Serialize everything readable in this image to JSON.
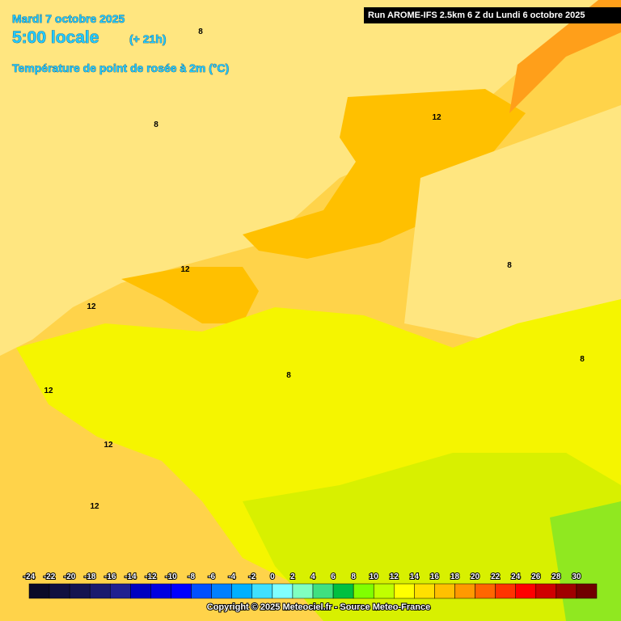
{
  "header": {
    "date": "Mardi 7 octobre 2025",
    "time": "5:00 locale",
    "lead": "(+ 21h)",
    "parameter": "Température de point de rosée à 2m (°C)",
    "run": "Run AROME-IFS 2.5km 6 Z du Lundi 6 octobre 2025"
  },
  "contour_labels": [
    "8",
    "12",
    "8",
    "12",
    "12",
    "8",
    "8",
    "8",
    "12",
    "12",
    "12"
  ],
  "legend": {
    "labels": [
      "-24",
      "-22",
      "-20",
      "-18",
      "-16",
      "-14",
      "-12",
      "-10",
      "-8",
      "-6",
      "-4",
      "-2",
      "0",
      "2",
      "4",
      "6",
      "8",
      "10",
      "12",
      "14",
      "16",
      "18",
      "20",
      "22",
      "24",
      "26",
      "28",
      "30"
    ],
    "colors": [
      "#0a0a28",
      "#101040",
      "#141450",
      "#1a1a6e",
      "#202090",
      "#0000c0",
      "#0000e0",
      "#0000ff",
      "#0050ff",
      "#0080ff",
      "#00b0ff",
      "#40e0ff",
      "#80ffff",
      "#80ffc0",
      "#40e080",
      "#00c040",
      "#80ff00",
      "#c0ff00",
      "#ffff00",
      "#ffe000",
      "#ffc000",
      "#ff9900",
      "#ff6600",
      "#ff3300",
      "#ff0000",
      "#d00000",
      "#a00000",
      "#700000"
    ]
  },
  "footer": {
    "copyright": "Copyright © 2025 Meteociel.fr - Source Meteo-France"
  }
}
